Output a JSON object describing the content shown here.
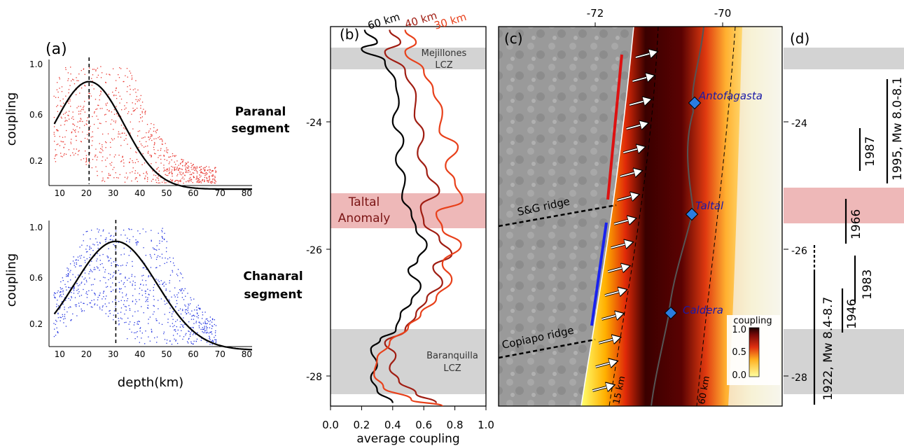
{
  "panel_a": {
    "label": "(a)",
    "top": {
      "segment_line1": "Paranal",
      "segment_line2": "segment",
      "ylabel": "coupling",
      "yticks": [
        "1.0",
        "0.6",
        "0.2"
      ],
      "xticks": [
        "10",
        "20",
        "30",
        "40",
        "50",
        "60",
        "70",
        "80"
      ],
      "color": "#e8322b",
      "peak_depth": 21,
      "peak_value": 0.86,
      "sigma": 13,
      "xlim": [
        6,
        82
      ],
      "ylim": [
        0.05,
        1.03
      ]
    },
    "bottom": {
      "segment_line1": "Chanaral",
      "segment_line2": "segment",
      "ylabel": "coupling",
      "yticks": [
        "1.0",
        "0.6",
        "0.2"
      ],
      "xticks": [
        "10",
        "20",
        "30",
        "40",
        "50",
        "60",
        "70",
        "80"
      ],
      "xlabel": "depth(km)",
      "color": "#2233e0",
      "peak_depth": 31,
      "peak_value": 0.88,
      "sigma": 15.5,
      "xlim": [
        6,
        82
      ],
      "ylim": [
        0.05,
        1.03
      ]
    }
  },
  "panel_b": {
    "label": "(b)",
    "xlabel": "average coupling",
    "xticks": [
      "0.0",
      "0.2",
      "0.4",
      "0.6",
      "0.8",
      "1.0"
    ],
    "lat_ticks": [
      "-24",
      "-26",
      "-28"
    ],
    "bands": [
      {
        "name_line1": "Mejillones",
        "name_line2": "LCZ",
        "kind": "grey"
      },
      {
        "name_line1": "Taltal",
        "name_line2": "Anomaly",
        "kind": "red"
      },
      {
        "name_line1": "Baranquilla",
        "name_line2": "LCZ",
        "kind": "grey"
      }
    ],
    "series_labels": [
      {
        "name": "60 km",
        "color": "#000000"
      },
      {
        "name": "40 km",
        "color": "#a01d12"
      },
      {
        "name": "30 km",
        "color": "#e8401a"
      }
    ]
  },
  "chart_data": [
    {
      "type": "scatter",
      "panel": "a-top",
      "title": "Paranal segment",
      "xlabel": "depth(km)",
      "ylabel": "coupling",
      "xlim": [
        6,
        82
      ],
      "ylim": [
        0.05,
        1.03
      ],
      "fit_curve": {
        "type": "gaussian",
        "peak_depth_km": 21,
        "peak_coupling": 0.86,
        "sigma_km": 13
      },
      "vertical_line_depth_km": 21
    },
    {
      "type": "scatter",
      "panel": "a-bottom",
      "title": "Chanaral segment",
      "xlabel": "depth(km)",
      "ylabel": "coupling",
      "xlim": [
        6,
        82
      ],
      "ylim": [
        0.05,
        1.03
      ],
      "fit_curve": {
        "type": "gaussian",
        "peak_depth_km": 31,
        "peak_coupling": 0.88,
        "sigma_km": 15.5
      },
      "vertical_line_depth_km": 31
    },
    {
      "type": "line",
      "panel": "b",
      "xlabel": "average coupling",
      "xlim": [
        0,
        1
      ],
      "ylim_latitude": [
        -28.5,
        -22.5
      ],
      "series": [
        {
          "name": "60 km",
          "color": "#000000",
          "points": [
            [
              0.22,
              -22.55
            ],
            [
              0.3,
              -22.75
            ],
            [
              0.2,
              -22.85
            ],
            [
              0.35,
              -23.05
            ],
            [
              0.42,
              -23.4
            ],
            [
              0.44,
              -23.7
            ],
            [
              0.4,
              -24.0
            ],
            [
              0.47,
              -24.3
            ],
            [
              0.42,
              -24.6
            ],
            [
              0.48,
              -24.9
            ],
            [
              0.46,
              -25.2
            ],
            [
              0.52,
              -25.45
            ],
            [
              0.55,
              -25.7
            ],
            [
              0.62,
              -25.95
            ],
            [
              0.56,
              -26.2
            ],
            [
              0.5,
              -26.35
            ],
            [
              0.58,
              -26.6
            ],
            [
              0.52,
              -26.85
            ],
            [
              0.45,
              -27.05
            ],
            [
              0.42,
              -27.3
            ],
            [
              0.32,
              -27.45
            ],
            [
              0.26,
              -27.6
            ],
            [
              0.3,
              -27.85
            ],
            [
              0.26,
              -28.05
            ],
            [
              0.3,
              -28.25
            ],
            [
              0.4,
              -28.45
            ]
          ]
        },
        {
          "name": "40 km",
          "color": "#a01d12",
          "points": [
            [
              0.38,
              -22.55
            ],
            [
              0.45,
              -22.75
            ],
            [
              0.35,
              -22.9
            ],
            [
              0.48,
              -23.2
            ],
            [
              0.55,
              -23.6
            ],
            [
              0.54,
              -23.9
            ],
            [
              0.6,
              -24.2
            ],
            [
              0.56,
              -24.5
            ],
            [
              0.62,
              -24.8
            ],
            [
              0.7,
              -25.1
            ],
            [
              0.58,
              -25.35
            ],
            [
              0.6,
              -25.6
            ],
            [
              0.7,
              -25.85
            ],
            [
              0.78,
              -26.1
            ],
            [
              0.66,
              -26.3
            ],
            [
              0.72,
              -26.55
            ],
            [
              0.62,
              -26.8
            ],
            [
              0.55,
              -27.05
            ],
            [
              0.48,
              -27.3
            ],
            [
              0.35,
              -27.5
            ],
            [
              0.42,
              -27.7
            ],
            [
              0.38,
              -27.9
            ],
            [
              0.44,
              -28.1
            ],
            [
              0.55,
              -28.3
            ],
            [
              0.68,
              -28.45
            ]
          ]
        },
        {
          "name": "30 km",
          "color": "#e8401a",
          "points": [
            [
              0.48,
              -22.55
            ],
            [
              0.55,
              -22.75
            ],
            [
              0.48,
              -22.9
            ],
            [
              0.6,
              -23.2
            ],
            [
              0.66,
              -23.5
            ],
            [
              0.72,
              -23.85
            ],
            [
              0.7,
              -24.15
            ],
            [
              0.82,
              -24.4
            ],
            [
              0.74,
              -24.7
            ],
            [
              0.8,
              -24.95
            ],
            [
              0.85,
              -25.25
            ],
            [
              0.68,
              -25.45
            ],
            [
              0.72,
              -25.7
            ],
            [
              0.84,
              -25.95
            ],
            [
              0.72,
              -26.25
            ],
            [
              0.78,
              -26.5
            ],
            [
              0.68,
              -26.8
            ],
            [
              0.58,
              -27.05
            ],
            [
              0.5,
              -27.25
            ],
            [
              0.38,
              -27.5
            ],
            [
              0.3,
              -27.75
            ],
            [
              0.28,
              -28.0
            ],
            [
              0.34,
              -28.2
            ],
            [
              0.52,
              -28.4
            ],
            [
              0.72,
              -28.5
            ]
          ]
        }
      ]
    },
    {
      "type": "heatmap",
      "panel": "c",
      "x_ticks": [
        "-72",
        "-70"
      ],
      "colorbar": {
        "label": "coupling",
        "ticks": [
          "1.0",
          "0.5",
          "0.0"
        ]
      }
    },
    {
      "type": "line",
      "panel": "d",
      "lat_ticks": [
        "-24",
        "-26",
        "-28"
      ],
      "ruptures": [
        {
          "label": "1995, Mw 8.0-8.1",
          "lat_range": [
            -22.5,
            -24.8
          ]
        },
        {
          "label": "1987",
          "lat_range": [
            -24.0,
            -24.8
          ]
        },
        {
          "label": "1966",
          "lat_range": [
            -25.0,
            -25.85
          ]
        },
        {
          "label": "1983",
          "lat_range": [
            -26.1,
            -26.9
          ]
        },
        {
          "label": "1946",
          "lat_range": [
            -26.7,
            -27.4
          ]
        },
        {
          "label": "1922, Mw 8.4-8.7",
          "lat_range": [
            -26.4,
            -28.4
          ]
        }
      ]
    }
  ],
  "panel_c": {
    "label": "(c)",
    "lon_ticks": [
      "-72",
      "-70"
    ],
    "cities": [
      {
        "name": "Antofagasta",
        "color": "#1a1aa8"
      },
      {
        "name": "Taltal",
        "color": "#1a1aa8"
      },
      {
        "name": "Caldera",
        "color": "#1a1aa8"
      }
    ],
    "ridges": [
      "S&G ridge",
      "Copiapo ridge"
    ],
    "depth_labels": [
      "15 km",
      "60 km"
    ],
    "colorbar_label": "coupling",
    "colorbar_ticks": [
      "1.0",
      "0.5",
      "0.0"
    ]
  },
  "panel_d": {
    "label": "(d)",
    "lat_ticks": [
      "-24",
      "-26",
      "-28"
    ],
    "rupture_labels": [
      "1995, Mw 8.0-8.1",
      "1987",
      "1966",
      "1983",
      "1946",
      "1922, Mw 8.4-8.7"
    ]
  }
}
